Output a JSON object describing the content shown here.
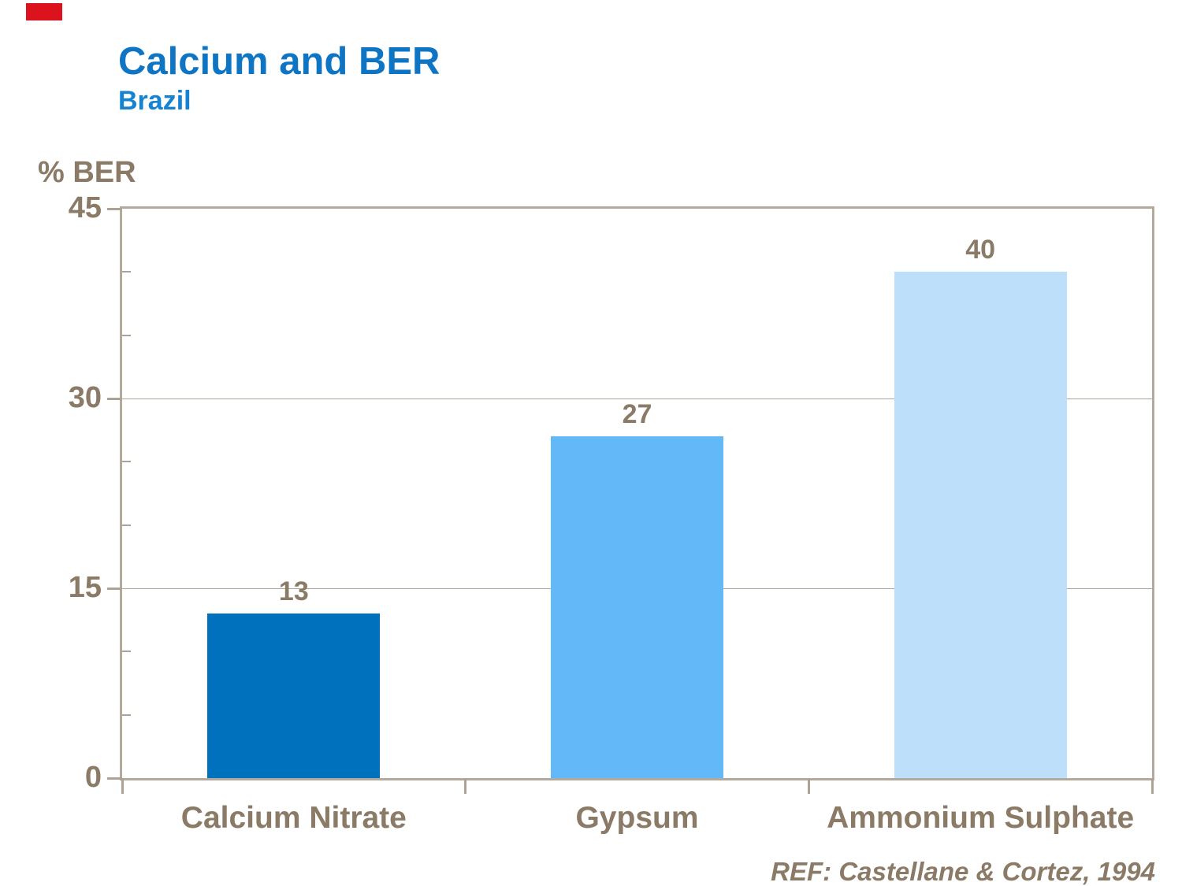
{
  "slide": {
    "title": "Calcium and BER",
    "subtitle": "Brazil",
    "reference": "REF: Castellane & Cortez, 1994"
  },
  "colors": {
    "title_blue": "#0e74c4",
    "subtitle_blue": "#1583d2",
    "text_brown": "#8a7a66",
    "axis_tan": "#ada293",
    "gridline": "#aca396",
    "accent_red": "#dc121c"
  },
  "chart_data": {
    "type": "bar",
    "title": "Calcium and BER",
    "subtitle": "Brazil",
    "ylabel": "% BER",
    "xlabel": "",
    "categories": [
      "Calcium Nitrate",
      "Gypsum",
      "Ammonium Sulphate"
    ],
    "values": [
      13,
      27,
      40
    ],
    "data_labels": [
      "13",
      "27",
      "40"
    ],
    "bar_colors": [
      "#0071bd",
      "#63b8f7",
      "#bedffa"
    ],
    "ylim": [
      0,
      45
    ],
    "yticks": [
      45,
      30,
      15,
      0
    ],
    "minor_yticks": [
      5,
      10,
      20,
      25,
      35,
      40
    ],
    "grid": true,
    "legend": false,
    "annotation": "REF: Castellane & Cortez, 1994"
  }
}
